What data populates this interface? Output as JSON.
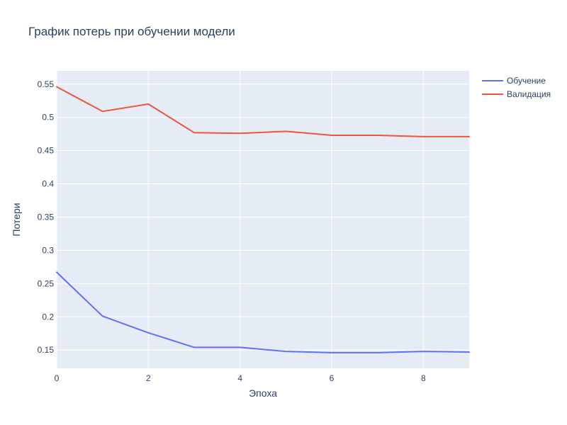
{
  "chart_data": {
    "type": "line",
    "title": "График потерь при обучении модели",
    "xlabel": "Эпоха",
    "ylabel": "Потери",
    "x": [
      0,
      1,
      2,
      3,
      4,
      5,
      6,
      7,
      8,
      9
    ],
    "xlim": [
      0,
      9
    ],
    "ylim": [
      0.1225,
      0.57
    ],
    "x_ticks": [
      0,
      2,
      4,
      6,
      8
    ],
    "x_tick_labels": [
      "0",
      "2",
      "4",
      "6",
      "8"
    ],
    "y_ticks": [
      0.15,
      0.2,
      0.25,
      0.3,
      0.35,
      0.4,
      0.45,
      0.5,
      0.55
    ],
    "y_tick_labels": [
      "0.15",
      "0.2",
      "0.25",
      "0.3",
      "0.35",
      "0.4",
      "0.45",
      "0.5",
      "0.55"
    ],
    "grid": true,
    "legend_position": "top-right",
    "plot_background": "#e5ecf6",
    "series": [
      {
        "name": "Обучение",
        "color": "#636efa",
        "values": [
          0.267,
          0.201,
          0.176,
          0.154,
          0.154,
          0.148,
          0.146,
          0.146,
          0.148,
          0.147
        ]
      },
      {
        "name": "Валидация",
        "color": "#ef553b",
        "values": [
          0.546,
          0.509,
          0.52,
          0.477,
          0.476,
          0.479,
          0.473,
          0.473,
          0.471,
          0.471
        ]
      }
    ]
  }
}
